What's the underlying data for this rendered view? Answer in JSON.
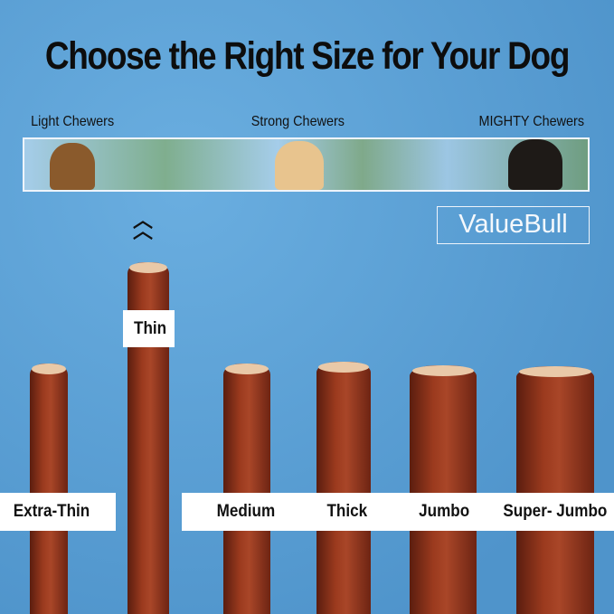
{
  "title": "Choose the Right Size for Your Dog",
  "chewers": [
    "Light Chewers",
    "Strong Chewers",
    "MIGHTY Chewers"
  ],
  "brand": "ValueBull",
  "sizes": [
    "Extra-Thin",
    "Thin",
    "Medium",
    "Thick",
    "Jumbo",
    "Super- Jumbo"
  ],
  "colors": {
    "background": "#5a9fd4",
    "stick": "#9b3a1e"
  }
}
